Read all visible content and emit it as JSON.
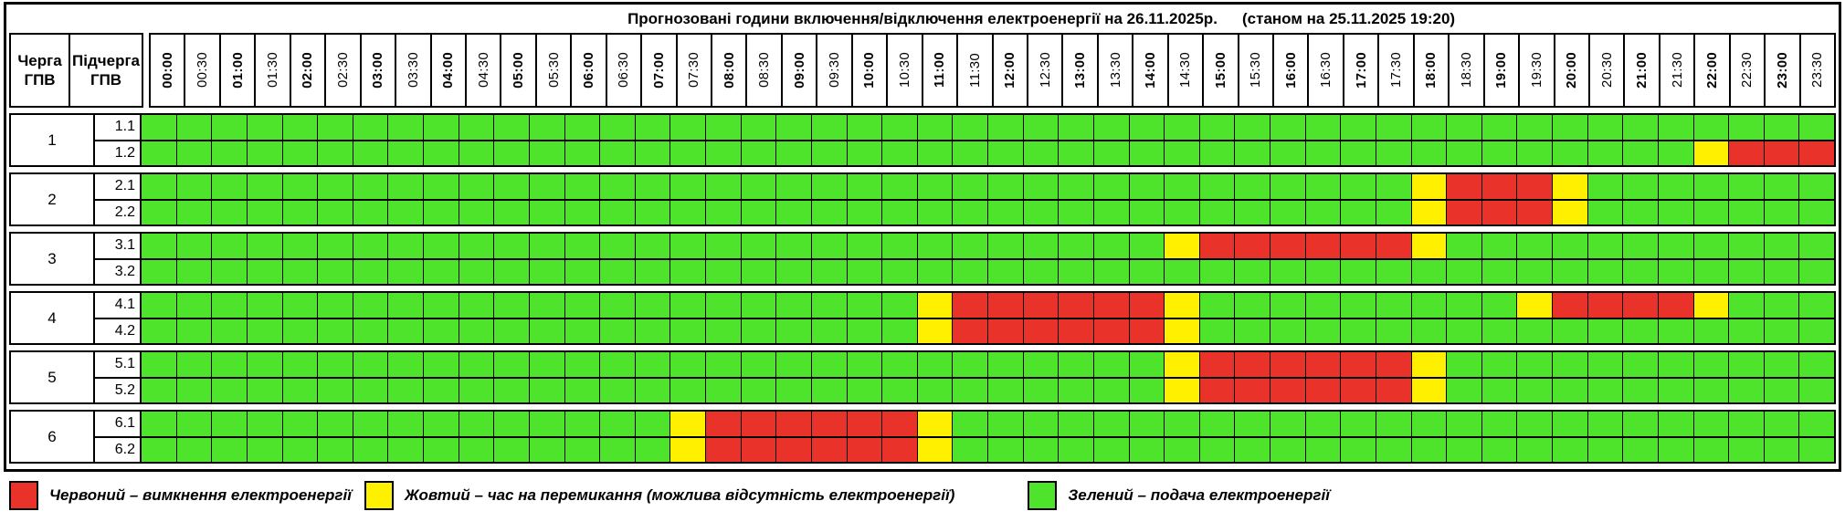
{
  "title": {
    "main": "Прогнозовані години включення/відключення електроенергії на 26.11.2025р.",
    "asof": "(станом на 25.11.2025 19:20)"
  },
  "header": {
    "queue_label": "Черга ГПВ",
    "subqueue_label": "Підчерга ГПВ"
  },
  "colors": {
    "green": "#4de42b",
    "yellow": "#fff000",
    "red": "#e93229",
    "border": "#000000"
  },
  "legend": [
    {
      "key": "red",
      "text": "Червоний – вимкнення електроенергії"
    },
    {
      "key": "yellow",
      "text": "Жовтий – час на перемикання (можлива відсутність електроенергії)"
    },
    {
      "key": "green",
      "text": "Зелений – подача електроенергії"
    }
  ],
  "chart_data": {
    "type": "heatmap",
    "title": "Прогнозовані години включення/відключення електроенергії на 26.11.2025р.",
    "subtitle": "(станом на 25.11.2025 19:20)",
    "x": [
      "00:00",
      "00:30",
      "01:00",
      "01:30",
      "02:00",
      "02:30",
      "03:00",
      "03:30",
      "04:00",
      "04:30",
      "05:00",
      "05:30",
      "06:00",
      "06:30",
      "07:00",
      "07:30",
      "08:00",
      "08:30",
      "09:00",
      "09:30",
      "10:00",
      "10:30",
      "11:00",
      "11:30",
      "12:00",
      "12:30",
      "13:00",
      "13:30",
      "14:00",
      "14:30",
      "15:00",
      "15:30",
      "16:00",
      "16:30",
      "17:00",
      "17:30",
      "18:00",
      "18:30",
      "19:00",
      "19:30",
      "20:00",
      "20:30",
      "21:00",
      "21:30",
      "22:00",
      "22:30",
      "23:00",
      "23:30"
    ],
    "cell_states": {
      "g": "green — подача електроенергії",
      "y": "yellow — час на перемикання",
      "r": "red — вимкнення електроенергії"
    },
    "queues": [
      {
        "number": "1",
        "rows": [
          {
            "label": "1.1",
            "cells": "gggggggggggggggggggggggggggggggggggggggggggggggg"
          },
          {
            "label": "1.2",
            "cells": "ggggggggggggggggggggggggggggggggggggggggggggyrrr"
          }
        ]
      },
      {
        "number": "2",
        "rows": [
          {
            "label": "2.1",
            "cells": "ggggggggggggggggggggggggggggggggggggyrrryggggggg"
          },
          {
            "label": "2.2",
            "cells": "ggggggggggggggggggggggggggggggggggggyrrryggggggg"
          }
        ]
      },
      {
        "number": "3",
        "rows": [
          {
            "label": "3.1",
            "cells": "gggggggggggggggggggggggggggggyrrrrrryggggggggggg"
          },
          {
            "label": "3.2",
            "cells": "gggggggggggggggggggggggggggggggggggggggggggggggg"
          }
        ]
      },
      {
        "number": "4",
        "rows": [
          {
            "label": "4.1",
            "cells": "ggggggggggggggggggggggyrrrrrrygggggggggyrrrryggg"
          },
          {
            "label": "4.2",
            "cells": "ggggggggggggggggggggggyrrrrrrygggggggggggggggggg"
          }
        ]
      },
      {
        "number": "5",
        "rows": [
          {
            "label": "5.1",
            "cells": "gggggggggggggggggggggggggggggyrrrrrryggggggggggg"
          },
          {
            "label": "5.2",
            "cells": "gggggggggggggggggggggggggggggyrrrrrryggggggggggg"
          }
        ]
      },
      {
        "number": "6",
        "rows": [
          {
            "label": "6.1",
            "cells": "gggggggggggggggyrrrrrryggggggggggggggggggggggggg"
          },
          {
            "label": "6.2",
            "cells": "gggggggggggggggyrrrrrryggggggggggggggggggggggggg"
          }
        ]
      }
    ]
  }
}
